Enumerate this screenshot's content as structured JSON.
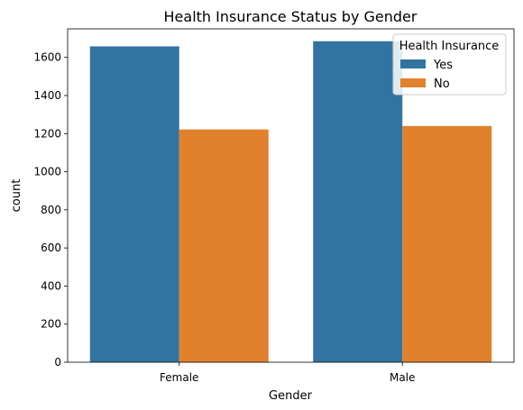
{
  "chart_data": {
    "type": "bar",
    "title": "Health Insurance Status by Gender",
    "xlabel": "Gender",
    "ylabel": "count",
    "categories": [
      "Female",
      "Male"
    ],
    "series": [
      {
        "name": "Yes",
        "values": [
          1658,
          1685
        ],
        "color": "#3274a1"
      },
      {
        "name": "No",
        "values": [
          1222,
          1240
        ],
        "color": "#e1812c"
      }
    ],
    "ylim": [
      0,
      1750
    ],
    "yticks": [
      "0",
      "200",
      "400",
      "600",
      "800",
      "1000",
      "1200",
      "1400",
      "1600"
    ],
    "legend": {
      "title": "Health Insurance",
      "placement": "top-right"
    },
    "grid": false
  }
}
